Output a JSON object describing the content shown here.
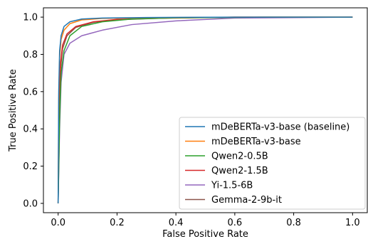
{
  "chart_data": {
    "type": "line",
    "title": "",
    "xlabel": "False Positive Rate",
    "ylabel": "True Positive Rate",
    "xlim": [
      -0.05,
      1.05
    ],
    "ylim": [
      -0.05,
      1.05
    ],
    "xticks": [
      "0.0",
      "0.2",
      "0.4",
      "0.6",
      "0.8",
      "1.0"
    ],
    "yticks": [
      "0.0",
      "0.2",
      "0.4",
      "0.6",
      "0.8",
      "1.0"
    ],
    "grid": false,
    "legend_position": "bottom-right",
    "series": [
      {
        "name": "mDeBERTa-v3-base (baseline)",
        "color": "#1f77b4",
        "points": [
          [
            0,
            0
          ],
          [
            0.002,
            0.6
          ],
          [
            0.005,
            0.82
          ],
          [
            0.01,
            0.9
          ],
          [
            0.02,
            0.95
          ],
          [
            0.04,
            0.975
          ],
          [
            0.08,
            0.99
          ],
          [
            0.15,
            0.995
          ],
          [
            0.3,
            0.998
          ],
          [
            0.6,
            1.0
          ],
          [
            1.0,
            1.0
          ]
        ]
      },
      {
        "name": "mDeBERTa-v3-base",
        "color": "#ff7f0e",
        "points": [
          [
            0,
            0
          ],
          [
            0.002,
            0.55
          ],
          [
            0.005,
            0.78
          ],
          [
            0.01,
            0.88
          ],
          [
            0.02,
            0.93
          ],
          [
            0.04,
            0.965
          ],
          [
            0.08,
            0.985
          ],
          [
            0.15,
            0.993
          ],
          [
            0.3,
            0.997
          ],
          [
            0.6,
            1.0
          ],
          [
            1.0,
            1.0
          ]
        ]
      },
      {
        "name": "Qwen2-0.5B",
        "color": "#2ca02c",
        "points": [
          [
            0,
            0
          ],
          [
            0.005,
            0.45
          ],
          [
            0.01,
            0.7
          ],
          [
            0.02,
            0.82
          ],
          [
            0.04,
            0.9
          ],
          [
            0.08,
            0.95
          ],
          [
            0.15,
            0.975
          ],
          [
            0.25,
            0.99
          ],
          [
            0.4,
            0.996
          ],
          [
            0.7,
            1.0
          ],
          [
            1.0,
            1.0
          ]
        ]
      },
      {
        "name": "Qwen2-1.5B",
        "color": "#d62728",
        "points": [
          [
            0,
            0
          ],
          [
            0.003,
            0.55
          ],
          [
            0.008,
            0.75
          ],
          [
            0.015,
            0.85
          ],
          [
            0.03,
            0.91
          ],
          [
            0.06,
            0.95
          ],
          [
            0.12,
            0.975
          ],
          [
            0.2,
            0.988
          ],
          [
            0.35,
            0.995
          ],
          [
            0.6,
            1.0
          ],
          [
            1.0,
            1.0
          ]
        ]
      },
      {
        "name": "Yi-1.5-6B",
        "color": "#9467bd",
        "points": [
          [
            0,
            0
          ],
          [
            0.005,
            0.4
          ],
          [
            0.01,
            0.65
          ],
          [
            0.02,
            0.8
          ],
          [
            0.04,
            0.86
          ],
          [
            0.08,
            0.9
          ],
          [
            0.15,
            0.93
          ],
          [
            0.25,
            0.96
          ],
          [
            0.4,
            0.98
          ],
          [
            0.6,
            0.995
          ],
          [
            1.0,
            1.0
          ]
        ]
      },
      {
        "name": "Gemma-2-9b-it",
        "color": "#8c564b",
        "points": [
          [
            0,
            0
          ],
          [
            0.003,
            0.5
          ],
          [
            0.008,
            0.72
          ],
          [
            0.015,
            0.83
          ],
          [
            0.03,
            0.9
          ],
          [
            0.06,
            0.945
          ],
          [
            0.12,
            0.972
          ],
          [
            0.2,
            0.986
          ],
          [
            0.35,
            0.994
          ],
          [
            0.6,
            1.0
          ],
          [
            1.0,
            1.0
          ]
        ]
      }
    ]
  }
}
